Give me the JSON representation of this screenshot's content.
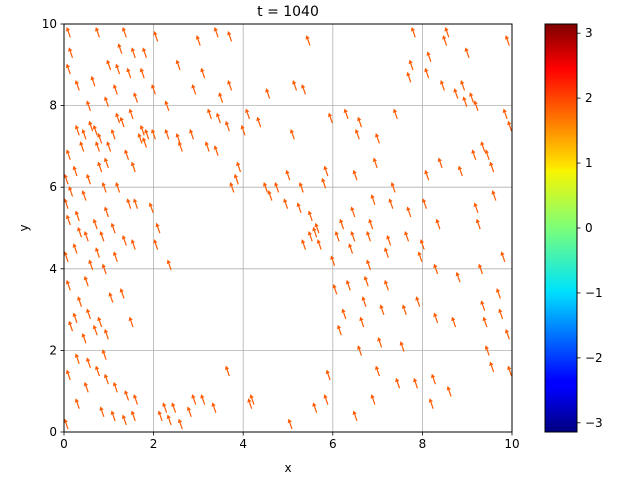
{
  "chart_data": {
    "type": "quiver",
    "title": "t = 1040",
    "xlabel": "x",
    "ylabel": "y",
    "xlim": [
      0,
      10
    ],
    "ylim": [
      0,
      10
    ],
    "xticks": [
      "0",
      "2",
      "4",
      "6",
      "8",
      "10"
    ],
    "yticks": [
      "0",
      "2",
      "4",
      "6",
      "8",
      "10"
    ],
    "grid": true,
    "arrow_color": "#ff5a00",
    "colorbar": {
      "colormap": "jet",
      "range": [
        -3.14159,
        3.14159
      ],
      "ticks": [
        "3",
        "2",
        "1",
        "0",
        "−1",
        "−2",
        "−3"
      ]
    },
    "arrow_angle_rad": 1.9,
    "points": [
      [
        0.05,
        0.2
      ],
      [
        0.1,
        1.4
      ],
      [
        0.15,
        2.6
      ],
      [
        0.1,
        3.6
      ],
      [
        0.05,
        4.3
      ],
      [
        0.1,
        5.2
      ],
      [
        0.05,
        5.6
      ],
      [
        0.15,
        5.9
      ],
      [
        0.05,
        6.2
      ],
      [
        0.1,
        6.8
      ],
      [
        0.1,
        8.9
      ],
      [
        0.15,
        9.3
      ],
      [
        0.1,
        9.8
      ],
      [
        0.3,
        0.7
      ],
      [
        0.3,
        1.8
      ],
      [
        0.25,
        2.8
      ],
      [
        0.35,
        3.2
      ],
      [
        0.25,
        4.5
      ],
      [
        0.35,
        4.9
      ],
      [
        0.3,
        5.3
      ],
      [
        0.25,
        6.4
      ],
      [
        0.4,
        7.0
      ],
      [
        0.3,
        7.4
      ],
      [
        0.45,
        7.3
      ],
      [
        0.3,
        8.5
      ],
      [
        0.5,
        1.1
      ],
      [
        0.55,
        1.7
      ],
      [
        0.45,
        2.3
      ],
      [
        0.55,
        2.9
      ],
      [
        0.5,
        3.7
      ],
      [
        0.6,
        4.1
      ],
      [
        0.5,
        4.8
      ],
      [
        0.45,
        5.8
      ],
      [
        0.55,
        6.2
      ],
      [
        0.6,
        7.5
      ],
      [
        0.55,
        8.0
      ],
      [
        0.75,
        1.5
      ],
      [
        0.7,
        2.5
      ],
      [
        0.8,
        2.7
      ],
      [
        0.75,
        4.4
      ],
      [
        0.7,
        5.1
      ],
      [
        0.8,
        6.5
      ],
      [
        0.75,
        7.0
      ],
      [
        0.7,
        7.4
      ],
      [
        0.8,
        7.2
      ],
      [
        0.65,
        8.6
      ],
      [
        0.75,
        9.8
      ],
      [
        0.85,
        0.5
      ],
      [
        0.95,
        1.3
      ],
      [
        0.9,
        1.9
      ],
      [
        0.95,
        2.4
      ],
      [
        0.9,
        4.0
      ],
      [
        0.85,
        4.8
      ],
      [
        0.95,
        5.4
      ],
      [
        0.9,
        6.0
      ],
      [
        0.95,
        6.6
      ],
      [
        1.0,
        7.0
      ],
      [
        0.95,
        8.1
      ],
      [
        1.0,
        9.0
      ],
      [
        1.1,
        0.4
      ],
      [
        1.15,
        1.1
      ],
      [
        1.05,
        3.3
      ],
      [
        1.15,
        4.3
      ],
      [
        1.1,
        5.0
      ],
      [
        1.2,
        6.0
      ],
      [
        1.1,
        7.3
      ],
      [
        1.2,
        7.7
      ],
      [
        1.15,
        8.4
      ],
      [
        1.2,
        8.9
      ],
      [
        1.25,
        9.4
      ],
      [
        1.35,
        0.3
      ],
      [
        1.4,
        0.9
      ],
      [
        1.3,
        3.4
      ],
      [
        1.35,
        4.7
      ],
      [
        1.45,
        5.6
      ],
      [
        1.4,
        6.8
      ],
      [
        1.3,
        7.6
      ],
      [
        1.45,
        8.8
      ],
      [
        1.35,
        9.8
      ],
      [
        1.55,
        0.4
      ],
      [
        1.6,
        0.8
      ],
      [
        1.5,
        2.7
      ],
      [
        1.55,
        4.6
      ],
      [
        1.6,
        5.6
      ],
      [
        1.55,
        6.5
      ],
      [
        1.5,
        7.8
      ],
      [
        1.6,
        8.2
      ],
      [
        1.55,
        9.3
      ],
      [
        1.7,
        7.2
      ],
      [
        1.75,
        7.4
      ],
      [
        1.8,
        7.1
      ],
      [
        1.85,
        7.3
      ],
      [
        1.75,
        8.8
      ],
      [
        1.8,
        9.3
      ],
      [
        1.95,
        5.5
      ],
      [
        2.05,
        4.6
      ],
      [
        2.1,
        5.0
      ],
      [
        2.0,
        7.3
      ],
      [
        2.0,
        8.4
      ],
      [
        2.05,
        9.7
      ],
      [
        2.15,
        0.4
      ],
      [
        2.25,
        0.6
      ],
      [
        2.35,
        0.3
      ],
      [
        2.3,
        7.3
      ],
      [
        2.3,
        8.0
      ],
      [
        2.35,
        4.1
      ],
      [
        2.45,
        0.6
      ],
      [
        2.6,
        0.2
      ],
      [
        2.55,
        7.2
      ],
      [
        2.6,
        7.0
      ],
      [
        2.55,
        9.0
      ],
      [
        2.8,
        0.5
      ],
      [
        2.9,
        0.8
      ],
      [
        2.85,
        7.3
      ],
      [
        2.9,
        8.4
      ],
      [
        3.0,
        9.6
      ],
      [
        3.1,
        0.8
      ],
      [
        3.2,
        7.0
      ],
      [
        3.25,
        7.8
      ],
      [
        3.1,
        8.8
      ],
      [
        3.35,
        0.6
      ],
      [
        3.4,
        6.9
      ],
      [
        3.45,
        7.7
      ],
      [
        3.5,
        8.2
      ],
      [
        3.4,
        9.8
      ],
      [
        3.65,
        7.5
      ],
      [
        3.7,
        8.5
      ],
      [
        3.65,
        1.5
      ],
      [
        3.75,
        6.0
      ],
      [
        3.7,
        9.7
      ],
      [
        3.85,
        6.2
      ],
      [
        3.9,
        6.5
      ],
      [
        4.0,
        7.4
      ],
      [
        4.1,
        7.8
      ],
      [
        4.15,
        0.7
      ],
      [
        4.2,
        0.8
      ],
      [
        4.35,
        7.6
      ],
      [
        4.5,
        6.0
      ],
      [
        4.55,
        8.3
      ],
      [
        4.6,
        5.8
      ],
      [
        4.75,
        6.0
      ],
      [
        4.95,
        5.6
      ],
      [
        5.0,
        6.3
      ],
      [
        5.05,
        0.2
      ],
      [
        5.1,
        7.3
      ],
      [
        5.15,
        8.5
      ],
      [
        5.25,
        5.5
      ],
      [
        5.3,
        6.0
      ],
      [
        5.35,
        8.4
      ],
      [
        5.45,
        9.6
      ],
      [
        5.5,
        5.3
      ],
      [
        5.35,
        4.6
      ],
      [
        5.5,
        4.8
      ],
      [
        5.6,
        4.9
      ],
      [
        5.65,
        5.0
      ],
      [
        5.7,
        4.6
      ],
      [
        5.6,
        0.6
      ],
      [
        5.85,
        0.8
      ],
      [
        5.9,
        1.4
      ],
      [
        5.8,
        6.1
      ],
      [
        5.85,
        6.4
      ],
      [
        5.95,
        7.7
      ],
      [
        6.05,
        3.5
      ],
      [
        6.0,
        4.2
      ],
      [
        6.1,
        4.8
      ],
      [
        6.2,
        5.1
      ],
      [
        6.3,
        7.8
      ],
      [
        6.15,
        2.5
      ],
      [
        6.25,
        2.9
      ],
      [
        6.35,
        3.6
      ],
      [
        6.4,
        4.5
      ],
      [
        6.45,
        4.8
      ],
      [
        6.45,
        5.4
      ],
      [
        6.5,
        6.3
      ],
      [
        6.55,
        7.3
      ],
      [
        6.6,
        7.6
      ],
      [
        6.5,
        0.4
      ],
      [
        6.6,
        2.0
      ],
      [
        6.65,
        2.7
      ],
      [
        6.7,
        3.2
      ],
      [
        6.75,
        3.7
      ],
      [
        6.8,
        4.1
      ],
      [
        6.8,
        4.8
      ],
      [
        6.85,
        5.1
      ],
      [
        6.9,
        5.7
      ],
      [
        6.95,
        6.6
      ],
      [
        7.0,
        7.2
      ],
      [
        6.9,
        0.8
      ],
      [
        7.0,
        1.5
      ],
      [
        7.05,
        2.2
      ],
      [
        7.1,
        3.0
      ],
      [
        7.2,
        3.6
      ],
      [
        7.2,
        4.4
      ],
      [
        7.25,
        4.7
      ],
      [
        7.3,
        5.6
      ],
      [
        7.35,
        6.0
      ],
      [
        7.4,
        7.8
      ],
      [
        7.45,
        1.2
      ],
      [
        7.55,
        2.1
      ],
      [
        7.6,
        3.0
      ],
      [
        7.65,
        4.8
      ],
      [
        7.7,
        5.4
      ],
      [
        7.7,
        8.7
      ],
      [
        7.75,
        9.0
      ],
      [
        7.8,
        9.8
      ],
      [
        7.85,
        1.2
      ],
      [
        7.9,
        3.2
      ],
      [
        7.95,
        4.3
      ],
      [
        8.0,
        4.6
      ],
      [
        8.05,
        5.6
      ],
      [
        8.1,
        6.3
      ],
      [
        8.1,
        8.8
      ],
      [
        8.15,
        9.2
      ],
      [
        8.2,
        0.7
      ],
      [
        8.25,
        1.3
      ],
      [
        8.3,
        2.8
      ],
      [
        8.3,
        4.0
      ],
      [
        8.35,
        5.1
      ],
      [
        8.4,
        6.6
      ],
      [
        8.45,
        8.5
      ],
      [
        8.5,
        9.6
      ],
      [
        8.55,
        9.8
      ],
      [
        8.6,
        1.0
      ],
      [
        8.7,
        2.7
      ],
      [
        8.8,
        3.8
      ],
      [
        8.85,
        6.4
      ],
      [
        8.9,
        8.5
      ],
      [
        9.0,
        9.3
      ],
      [
        9.1,
        8.2
      ],
      [
        9.15,
        6.8
      ],
      [
        9.2,
        5.5
      ],
      [
        9.25,
        5.1
      ],
      [
        9.3,
        4.0
      ],
      [
        9.35,
        3.1
      ],
      [
        9.4,
        2.7
      ],
      [
        9.45,
        2.0
      ],
      [
        9.55,
        1.6
      ],
      [
        9.2,
        8.0
      ],
      [
        9.35,
        7.0
      ],
      [
        9.45,
        6.8
      ],
      [
        9.55,
        6.5
      ],
      [
        9.6,
        5.8
      ],
      [
        9.7,
        3.4
      ],
      [
        9.75,
        2.9
      ],
      [
        9.8,
        4.3
      ],
      [
        9.9,
        2.4
      ],
      [
        9.95,
        1.5
      ],
      [
        9.85,
        7.8
      ],
      [
        9.95,
        7.5
      ],
      [
        9.9,
        9.6
      ],
      [
        8.75,
        8.3
      ],
      [
        8.95,
        8.1
      ]
    ]
  }
}
